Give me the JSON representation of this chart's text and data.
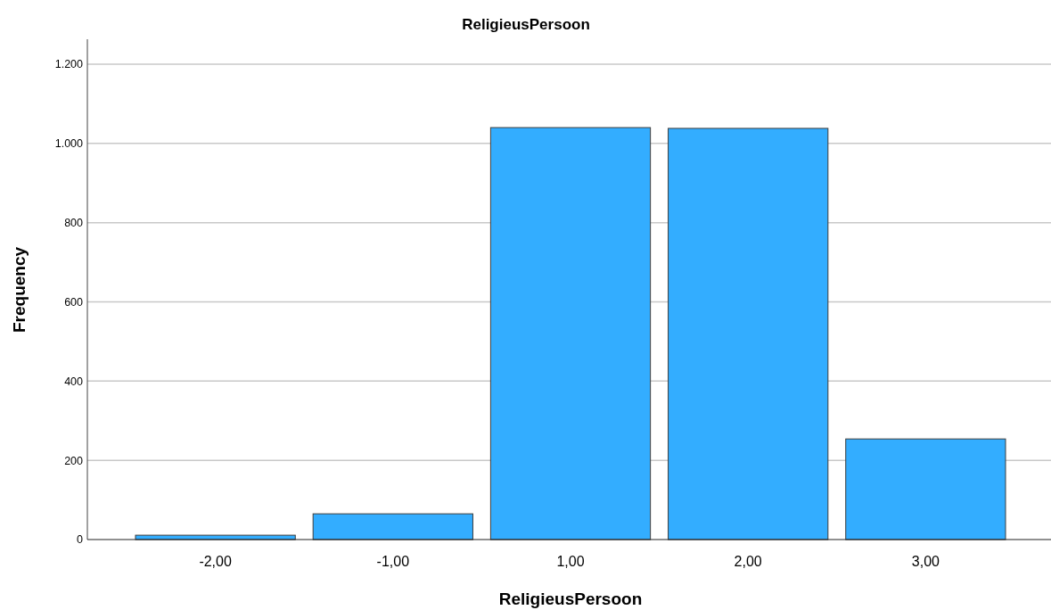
{
  "chart_data": {
    "type": "bar",
    "title": "ReligieusPersoon",
    "xlabel": "ReligieusPersoon",
    "ylabel": "Frequency",
    "categories": [
      "-2,00",
      "-1,00",
      "1,00",
      "2,00",
      "3,00"
    ],
    "values": [
      11,
      65,
      1040,
      1038,
      254
    ],
    "color": "#33adff",
    "ylim": [
      0,
      1263
    ],
    "yticks": [
      0,
      200,
      400,
      600,
      800,
      {
        "value": 1000,
        "label": "1.000"
      },
      {
        "value": 1200,
        "label": "1.200"
      }
    ],
    "grid": "y"
  }
}
